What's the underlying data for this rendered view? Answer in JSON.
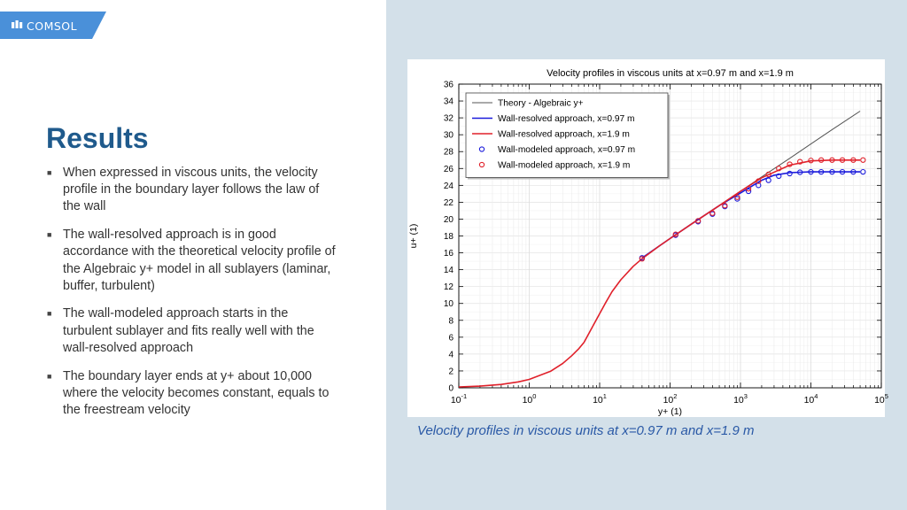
{
  "brand": {
    "name": "COMSOL",
    "color": "#4a90d9"
  },
  "slide": {
    "title": "Results",
    "bullets": [
      "When expressed in viscous units, the velocity profile in the boundary layer follows the law of the wall",
      "The wall-resolved approach is in good accordance with the theoretical velocity profile of the Algebraic y+ model in all sublayers (laminar, buffer, turbulent)",
      "The wall-modeled approach starts in the turbulent sublayer and fits really well with the wall-resolved approach",
      "The boundary layer ends at y+ about 10,000 where the velocity becomes constant, equals to the freestream velocity"
    ],
    "caption": "Velocity profiles in viscous units at x=0.97 m and x=1.9 m"
  },
  "chart_data": {
    "type": "line",
    "title": "Velocity profiles in viscous units at x=0.97 m and x=1.9 m",
    "xlabel": "y+ (1)",
    "ylabel": "u+ (1)",
    "xscale": "log",
    "xlim": [
      0.1,
      100000
    ],
    "ylim": [
      0,
      36
    ],
    "yticks": [
      0,
      2,
      4,
      6,
      8,
      10,
      12,
      14,
      16,
      18,
      20,
      22,
      24,
      26,
      28,
      30,
      32,
      34,
      36
    ],
    "xticks": [
      {
        "value": 0.1,
        "base": "10",
        "exp": "-1"
      },
      {
        "value": 1,
        "base": "10",
        "exp": "0"
      },
      {
        "value": 10,
        "base": "10",
        "exp": "1"
      },
      {
        "value": 100,
        "base": "10",
        "exp": "2"
      },
      {
        "value": 1000,
        "base": "10",
        "exp": "3"
      },
      {
        "value": 10000,
        "base": "10",
        "exp": "4"
      },
      {
        "value": 100000,
        "base": "10",
        "exp": "5"
      }
    ],
    "grid": true,
    "legend_position": "top-left",
    "series": [
      {
        "name": "Theory - Algebraic y+",
        "kind": "line",
        "color": "#555555",
        "x": [
          40,
          70,
          100,
          200,
          500,
          1000,
          2000,
          5000,
          10000,
          20000,
          50000
        ],
        "y": [
          15.4,
          16.8,
          17.7,
          19.4,
          21.6,
          23.3,
          25.0,
          27.2,
          28.9,
          30.6,
          32.8
        ]
      },
      {
        "name": "Wall-resolved approach, x=0.97 m",
        "kind": "line",
        "color": "#1a1adb",
        "x": [
          40,
          100,
          200,
          500,
          1000,
          2000,
          3000,
          5000,
          10000,
          20000,
          50000
        ],
        "y": [
          15.4,
          17.7,
          19.4,
          21.6,
          23.1,
          24.6,
          25.2,
          25.5,
          25.6,
          25.6,
          25.6
        ]
      },
      {
        "name": "Wall-resolved approach, x=1.9 m",
        "kind": "line",
        "color": "#e0202a",
        "x": [
          0.1,
          0.2,
          0.4,
          0.7,
          1,
          2,
          3,
          4,
          5,
          6,
          8,
          10,
          12,
          15,
          20,
          30,
          40,
          70,
          100,
          200,
          500,
          1000,
          2000,
          5000,
          10000,
          20000,
          50000
        ],
        "y": [
          0.1,
          0.2,
          0.4,
          0.7,
          1.0,
          1.95,
          2.9,
          3.8,
          4.6,
          5.4,
          7.3,
          8.8,
          10.0,
          11.4,
          12.8,
          14.4,
          15.3,
          16.8,
          17.7,
          19.4,
          21.6,
          23.3,
          24.9,
          26.4,
          26.9,
          27.0,
          27.0
        ]
      },
      {
        "name": "Wall-modeled approach, x=0.97 m",
        "kind": "marker",
        "color": "#1a1adb",
        "x": [
          40,
          120,
          250,
          400,
          600,
          900,
          1300,
          1800,
          2500,
          3500,
          5000,
          7000,
          10000,
          14000,
          20000,
          28000,
          40000,
          55000
        ],
        "y": [
          15.4,
          18.1,
          19.7,
          20.6,
          21.5,
          22.4,
          23.3,
          24.0,
          24.6,
          25.1,
          25.4,
          25.55,
          25.6,
          25.6,
          25.6,
          25.6,
          25.6,
          25.6
        ]
      },
      {
        "name": "Wall-modeled approach, x=1.9 m",
        "kind": "marker",
        "color": "#e0202a",
        "x": [
          40,
          120,
          250,
          400,
          600,
          900,
          1300,
          1800,
          2500,
          3500,
          5000,
          7000,
          10000,
          14000,
          20000,
          28000,
          40000,
          55000
        ],
        "y": [
          15.3,
          18.2,
          19.8,
          20.7,
          21.6,
          22.6,
          23.6,
          24.5,
          25.3,
          26.0,
          26.5,
          26.8,
          26.95,
          27.0,
          27.0,
          27.0,
          27.0,
          27.0
        ]
      }
    ]
  }
}
